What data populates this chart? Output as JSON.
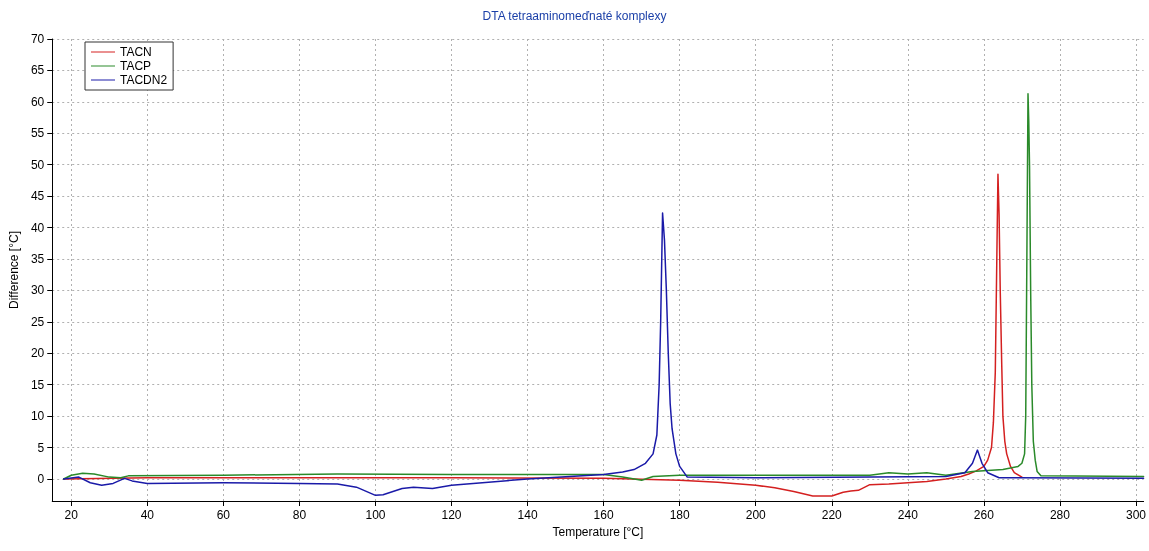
{
  "chart_data": {
    "type": "line",
    "title": "DTA tetraaminomeďnaté komplexy",
    "xlabel": "Temperature [°C]",
    "ylabel": "Difference [°C]",
    "xlim": [
      15,
      302
    ],
    "xticks": [
      20,
      40,
      60,
      80,
      100,
      120,
      140,
      160,
      180,
      200,
      220,
      240,
      260,
      280,
      300
    ],
    "ylim": [
      -3.5,
      70
    ],
    "yticks": [
      0,
      5,
      10,
      15,
      20,
      25,
      30,
      35,
      40,
      45,
      50,
      55,
      60,
      65,
      70
    ],
    "grid": true,
    "legend": "top left",
    "marker": "none",
    "line_style": "solid",
    "series": [
      {
        "name": "TACN",
        "color": "#d42020",
        "x": [
          18,
          40,
          80,
          120,
          160,
          180,
          190,
          200,
          205,
          210,
          215,
          220,
          223,
          225,
          227,
          230,
          235,
          240,
          245,
          250,
          254,
          256,
          258,
          260,
          261,
          262,
          262.5,
          263,
          263.4,
          263.7,
          264,
          264.3,
          264.7,
          265,
          265.5,
          266,
          267,
          268,
          270
        ],
        "values": [
          0,
          0.2,
          0.2,
          0.2,
          0.1,
          -0.2,
          -0.5,
          -1,
          -1.4,
          -2,
          -2.7,
          -2.7,
          -2.1,
          -1.9,
          -1.8,
          -0.9,
          -0.8,
          -0.6,
          -0.4,
          0,
          0.4,
          0.8,
          1.3,
          2,
          3,
          5,
          9,
          17,
          35,
          48.5,
          42,
          30,
          18,
          10,
          6,
          4,
          2,
          1,
          0.3
        ]
      },
      {
        "name": "TACP",
        "color": "#2a8a2a",
        "x": [
          18,
          20,
          23,
          26,
          30,
          33,
          35,
          60,
          90,
          120,
          160,
          165,
          170,
          173,
          180,
          230,
          235,
          240,
          245,
          250,
          257,
          265,
          269,
          270,
          270.7,
          271,
          271.3,
          271.6,
          271.8,
          272,
          272.3,
          272.6,
          273,
          273.5,
          274,
          275,
          302
        ],
        "values": [
          0,
          0.6,
          0.9,
          0.8,
          0.3,
          0.2,
          0.5,
          0.6,
          0.8,
          0.7,
          0.7,
          0.3,
          -0.2,
          0.4,
          0.6,
          0.6,
          1.0,
          0.8,
          1.0,
          0.6,
          1.2,
          1.5,
          2,
          2.5,
          4,
          10,
          35,
          61.3,
          57,
          50,
          30,
          15,
          6,
          3,
          1.2,
          0.5,
          0.4
        ]
      },
      {
        "name": "TACDN2",
        "color": "#1a1aa8",
        "x": [
          18,
          22,
          25,
          28,
          31,
          34,
          36,
          40,
          60,
          80,
          90,
          95,
          100,
          102,
          107,
          110,
          115,
          120,
          140,
          160,
          165,
          168,
          171,
          173,
          174,
          174.6,
          175,
          175.5,
          176,
          176.5,
          177,
          177.5,
          178,
          179,
          180,
          182,
          200,
          250,
          255,
          257,
          258.3,
          259.5,
          261,
          264,
          302
        ],
        "values": [
          0,
          0.3,
          -0.6,
          -1,
          -0.7,
          0.1,
          -0.3,
          -0.7,
          -0.6,
          -0.7,
          -0.8,
          -1.3,
          -2.6,
          -2.5,
          -1.5,
          -1.3,
          -1.5,
          -1,
          0,
          0.7,
          1.1,
          1.5,
          2.5,
          4,
          7,
          15,
          25,
          42.3,
          38,
          30,
          20,
          12,
          8,
          4,
          2,
          0.3,
          0.2,
          0.4,
          1,
          2.5,
          4.6,
          2.5,
          1,
          0.2,
          0.1
        ]
      }
    ]
  }
}
